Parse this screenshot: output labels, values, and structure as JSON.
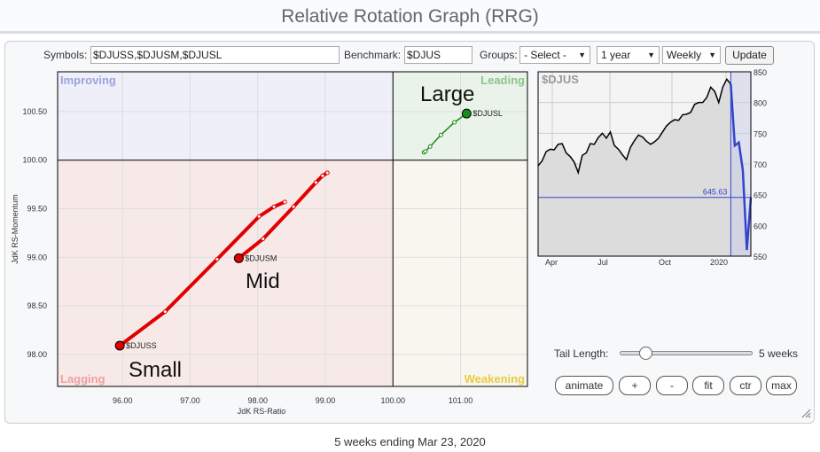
{
  "title": "Relative Rotation Graph (RRG)",
  "toolbar": {
    "symbols_label": "Symbols:",
    "symbols_value": "$DJUSS,$DJUSM,$DJUSL",
    "benchmark_label": "Benchmark:",
    "benchmark_value": "$DJUS",
    "groups_label": "Groups:",
    "groups_value": "- Select -",
    "period_value": "1 year",
    "frequency_value": "Weekly",
    "update_label": "Update"
  },
  "quadrants": {
    "improving": "Improving",
    "leading": "Leading",
    "lagging": "Lagging",
    "weakening": "Weakening"
  },
  "annotations": {
    "large": "Large",
    "mid": "Mid",
    "small": "Small"
  },
  "chart_data": [
    {
      "type": "scatter",
      "title": "Relative Rotation Graph",
      "xlabel": "JdK RS-Ratio",
      "ylabel": "JdK RS-Momentum",
      "xlim": [
        95.04,
        101.99
      ],
      "ylim": [
        97.67,
        100.91
      ],
      "xticks": [
        "96.00",
        "97.00",
        "98.00",
        "99.00",
        "100.00",
        "101.00"
      ],
      "yticks": [
        "98.00",
        "98.50",
        "99.00",
        "99.50",
        "100.00",
        "100.50"
      ],
      "series": [
        {
          "name": "$DJUSS",
          "color": "#e00000",
          "x": [
            98.4,
            98.24,
            98.02,
            97.4,
            96.63,
            95.96
          ],
          "y": [
            99.57,
            99.52,
            99.42,
            98.98,
            98.44,
            98.09
          ]
        },
        {
          "name": "$DJUSM",
          "color": "#e00000",
          "x": [
            99.03,
            98.96,
            98.86,
            98.53,
            98.08,
            97.72
          ],
          "y": [
            99.87,
            99.84,
            99.77,
            99.52,
            99.19,
            98.99
          ]
        },
        {
          "name": "$DJUSL",
          "color": "#1a8a1a",
          "x": [
            100.46,
            100.48,
            100.55,
            100.71,
            100.91,
            101.09
          ],
          "y": [
            100.08,
            100.09,
            100.14,
            100.26,
            100.39,
            100.48
          ]
        }
      ]
    },
    {
      "type": "line",
      "title": "$DJUS",
      "ylim": [
        550,
        850
      ],
      "yticks": [
        "850",
        "800",
        "750",
        "700",
        "650",
        "600",
        "550"
      ],
      "xticks": [
        "Apr",
        "Jul",
        "Oct",
        "2020"
      ],
      "last_value": "645.63",
      "values": [
        697,
        705,
        720,
        724,
        723,
        732,
        733,
        718,
        712,
        703,
        686,
        714,
        718,
        733,
        732,
        743,
        750,
        742,
        752,
        730,
        724,
        715,
        707,
        727,
        738,
        747,
        744,
        737,
        732,
        736,
        742,
        752,
        762,
        768,
        772,
        771,
        780,
        781,
        784,
        797,
        800,
        800,
        808,
        825,
        818,
        800,
        825,
        838,
        830,
        730,
        735,
        690,
        560,
        645.63
      ],
      "tail_weeks": 5
    }
  ],
  "controls": {
    "tail_label": "Tail Length:",
    "tail_value": "5 weeks",
    "tail_fraction": 0.15,
    "buttons": [
      "animate",
      "+",
      "-",
      "fit",
      "ctr",
      "max"
    ]
  },
  "footer": "5 weeks ending Mar 23, 2020"
}
